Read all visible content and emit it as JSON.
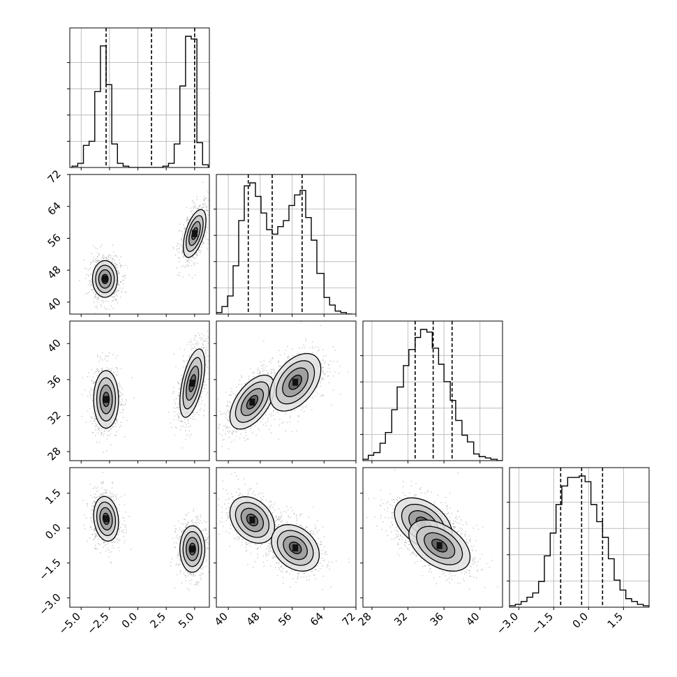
{
  "chart_data": {
    "type": "corner",
    "title": "",
    "parameters": [
      "",
      "",
      "",
      ""
    ],
    "axis_ranges": [
      [
        -6.0,
        6.3
      ],
      [
        37.0,
        72.0
      ],
      [
        27.0,
        42.5
      ],
      [
        -3.4,
        2.6
      ]
    ],
    "ticks": [
      {
        "values": [
          -5.0,
          -2.5,
          0.0,
          2.5,
          5.0
        ],
        "labels": [
          "−5.0",
          "−2.5",
          "0.0",
          "2.5",
          "5.0"
        ]
      },
      {
        "values": [
          40,
          48,
          56,
          64,
          72
        ],
        "labels": [
          "40",
          "48",
          "56",
          "64",
          "72"
        ]
      },
      {
        "values": [
          28,
          32,
          36,
          40
        ],
        "labels": [
          "28",
          "32",
          "36",
          "40"
        ]
      },
      {
        "values": [
          -3.0,
          -1.5,
          0.0,
          1.5
        ],
        "labels": [
          "−3.0",
          "−1.5",
          "0.0",
          "1.5"
        ]
      }
    ],
    "quantiles_dashed": [
      [
        -2.8,
        1.2,
        5.0
      ],
      [
        45.0,
        51.0,
        58.5
      ],
      [
        32.8,
        34.8,
        36.9
      ],
      [
        -1.2,
        -0.3,
        0.6
      ]
    ],
    "marginal_histograms": [
      {
        "bin_edges": [
          -5.8,
          -5.3,
          -4.8,
          -4.3,
          -3.8,
          -3.3,
          -2.8,
          -2.3,
          -1.8,
          -1.3,
          -0.8,
          -0.3,
          0.2,
          0.7,
          1.2,
          1.7,
          2.2,
          2.7,
          3.2,
          3.7,
          4.2,
          4.7,
          5.2,
          5.7,
          6.2
        ],
        "counts": [
          0.01,
          0.03,
          0.16,
          0.19,
          0.55,
          0.88,
          0.6,
          0.17,
          0.03,
          0.01,
          0,
          0,
          0,
          0,
          0,
          0,
          0.01,
          0.03,
          0.17,
          0.59,
          0.95,
          0.93,
          0.18,
          0.02
        ]
      },
      {
        "bin_edges": [
          37.0,
          38.4,
          39.8,
          41.2,
          42.6,
          44.0,
          45.4,
          46.8,
          48.2,
          49.6,
          51.0,
          52.4,
          53.8,
          55.2,
          56.6,
          58.0,
          59.4,
          60.8,
          62.2,
          64.0,
          65.4,
          66.8,
          68.2,
          69.6,
          71.0
        ],
        "counts": [
          0.01,
          0.05,
          0.12,
          0.32,
          0.62,
          0.85,
          0.87,
          0.78,
          0.67,
          0.56,
          0.53,
          0.58,
          0.62,
          0.72,
          0.79,
          0.82,
          0.64,
          0.49,
          0.27,
          0.11,
          0.06,
          0.02,
          0.01,
          0.0
        ]
      },
      {
        "bin_edges": [
          27.0,
          27.6,
          28.2,
          28.9,
          29.5,
          30.2,
          30.8,
          31.5,
          32.1,
          32.8,
          33.4,
          34.1,
          34.7,
          35.4,
          36.0,
          36.7,
          37.3,
          38.0,
          38.6,
          39.3,
          39.9,
          40.6,
          41.2,
          41.9,
          42.5
        ],
        "counts": [
          0.01,
          0.04,
          0.06,
          0.13,
          0.21,
          0.38,
          0.55,
          0.71,
          0.83,
          0.92,
          0.98,
          0.96,
          0.84,
          0.72,
          0.59,
          0.45,
          0.3,
          0.19,
          0.14,
          0.05,
          0.03,
          0.02,
          0.01,
          0.0
        ]
      },
      {
        "bin_edges": [
          -3.4,
          -3.15,
          -2.9,
          -2.65,
          -2.4,
          -2.15,
          -1.9,
          -1.65,
          -1.4,
          -1.15,
          -0.9,
          -0.65,
          -0.4,
          -0.15,
          0.1,
          0.35,
          0.6,
          0.85,
          1.1,
          1.35,
          1.6,
          1.85,
          2.1,
          2.35,
          2.6
        ],
        "counts": [
          0.01,
          0.02,
          0.04,
          0.07,
          0.1,
          0.18,
          0.36,
          0.52,
          0.72,
          0.85,
          0.91,
          0.91,
          0.92,
          0.88,
          0.72,
          0.6,
          0.49,
          0.34,
          0.19,
          0.12,
          0.06,
          0.04,
          0.02,
          0.01
        ]
      }
    ],
    "joint_components": [
      {
        "pair": [
          0,
          1
        ],
        "modes": [
          {
            "mean": [
              -2.9,
              45.8
            ],
            "sd": [
              0.55,
              2.3
            ],
            "corr": 0.0,
            "weight": 0.5
          },
          {
            "mean": [
              5.0,
              57.2
            ],
            "sd": [
              0.5,
              3.0
            ],
            "corr": 0.55,
            "weight": 0.5
          }
        ]
      },
      {
        "pair": [
          0,
          2
        ],
        "modes": [
          {
            "mean": [
              -2.8,
              33.8
            ],
            "sd": [
              0.55,
              1.6
            ],
            "corr": 0.0,
            "weight": 0.5
          },
          {
            "mean": [
              4.8,
              35.6
            ],
            "sd": [
              0.55,
              1.9
            ],
            "corr": 0.55,
            "weight": 0.5
          }
        ]
      },
      {
        "pair": [
          1,
          2
        ],
        "modes": [
          {
            "mean": [
              46.0,
              33.5
            ],
            "sd": [
              2.8,
              1.5
            ],
            "corr": 0.55,
            "weight": 0.5
          },
          {
            "mean": [
              56.8,
              35.7
            ],
            "sd": [
              3.2,
              1.6
            ],
            "corr": 0.45,
            "weight": 0.5
          }
        ]
      },
      {
        "pair": [
          0,
          3
        ],
        "modes": [
          {
            "mean": [
              -2.8,
              0.4
            ],
            "sd": [
              0.55,
              0.48
            ],
            "corr": -0.15,
            "weight": 0.5
          },
          {
            "mean": [
              4.8,
              -0.9
            ],
            "sd": [
              0.55,
              0.5
            ],
            "corr": 0.0,
            "weight": 0.5
          }
        ]
      },
      {
        "pair": [
          1,
          3
        ],
        "modes": [
          {
            "mean": [
              46.0,
              0.35
            ],
            "sd": [
              2.8,
              0.5
            ],
            "corr": -0.3,
            "weight": 0.5
          },
          {
            "mean": [
              56.8,
              -0.85
            ],
            "sd": [
              3.0,
              0.5
            ],
            "corr": -0.3,
            "weight": 0.5
          }
        ]
      },
      {
        "pair": [
          2,
          3
        ],
        "modes": [
          {
            "mean": [
              33.7,
              0.2
            ],
            "sd": [
              1.6,
              0.55
            ],
            "corr": -0.4,
            "weight": 0.5
          },
          {
            "mean": [
              35.5,
              -0.75
            ],
            "sd": [
              1.7,
              0.55
            ],
            "corr": -0.45,
            "weight": 0.5
          }
        ]
      }
    ],
    "contour_levels_sigma": [
      0.5,
      1.0,
      1.5,
      2.0
    ],
    "grid": true,
    "legend": "none"
  }
}
